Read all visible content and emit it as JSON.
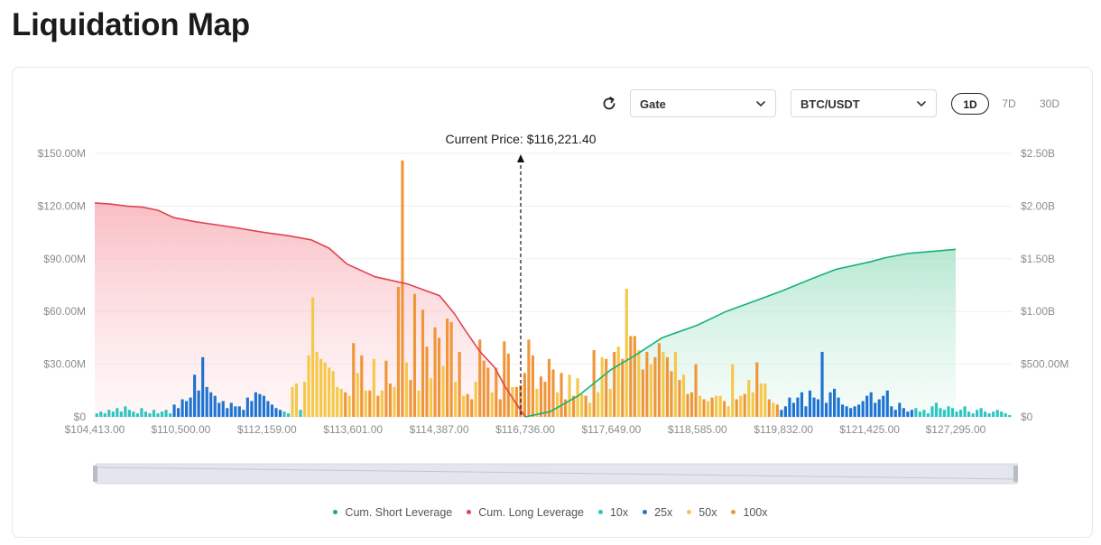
{
  "page": {
    "title": "Liquidation Map"
  },
  "controls": {
    "exchange": "Gate",
    "pair": "BTC/USDT",
    "timeframes": [
      "1D",
      "7D",
      "30D"
    ],
    "active_timeframe": "1D"
  },
  "colors": {
    "short": "#16b07a",
    "long": "#e04450",
    "x10": "#2ec4c0",
    "x25": "#1e73d2",
    "x50": "#f5c84a",
    "x100": "#f0963a"
  },
  "chart_data": {
    "type": "bar",
    "current_price_label": "Current Price: $116,221.40",
    "current_price": 116221.4,
    "x_tick_labels": [
      "$104,413.00",
      "$110,500.00",
      "$112,159.00",
      "$113,601.00",
      "$114,387.00",
      "$116,736.00",
      "$117,649.00",
      "$118,585.00",
      "$119,832.00",
      "$121,425.00",
      "$127,295.00"
    ],
    "y_left_ticks": [
      "$0",
      "$30.00M",
      "$60.00M",
      "$90.00M",
      "$120.00M",
      "$150.00M"
    ],
    "y_right_ticks": [
      "$0",
      "$500.00M",
      "$1.00B",
      "$1.50B",
      "$2.00B",
      "$2.50B"
    ],
    "y_left_range_millions": [
      0,
      150
    ],
    "y_right_range_billions": [
      0,
      2.5
    ],
    "legend": [
      "Cum. Short Leverage",
      "Cum. Long Leverage",
      "10x",
      "25x",
      "50x",
      "100x"
    ],
    "bars_millions": [
      {
        "lev": "10x",
        "v": 2
      },
      {
        "lev": "10x",
        "v": 3
      },
      {
        "lev": "10x",
        "v": 2
      },
      {
        "lev": "10x",
        "v": 4
      },
      {
        "lev": "10x",
        "v": 3
      },
      {
        "lev": "10x",
        "v": 5
      },
      {
        "lev": "10x",
        "v": 3
      },
      {
        "lev": "10x",
        "v": 6
      },
      {
        "lev": "10x",
        "v": 4
      },
      {
        "lev": "10x",
        "v": 3
      },
      {
        "lev": "10x",
        "v": 2
      },
      {
        "lev": "10x",
        "v": 5
      },
      {
        "lev": "10x",
        "v": 3
      },
      {
        "lev": "10x",
        "v": 2
      },
      {
        "lev": "10x",
        "v": 4
      },
      {
        "lev": "10x",
        "v": 2
      },
      {
        "lev": "10x",
        "v": 3
      },
      {
        "lev": "10x",
        "v": 4
      },
      {
        "lev": "10x",
        "v": 2
      },
      {
        "lev": "25x",
        "v": 7
      },
      {
        "lev": "25x",
        "v": 5
      },
      {
        "lev": "25x",
        "v": 10
      },
      {
        "lev": "25x",
        "v": 9
      },
      {
        "lev": "25x",
        "v": 11
      },
      {
        "lev": "25x",
        "v": 24
      },
      {
        "lev": "25x",
        "v": 15
      },
      {
        "lev": "25x",
        "v": 34
      },
      {
        "lev": "25x",
        "v": 17
      },
      {
        "lev": "25x",
        "v": 14
      },
      {
        "lev": "25x",
        "v": 12
      },
      {
        "lev": "25x",
        "v": 8
      },
      {
        "lev": "25x",
        "v": 9
      },
      {
        "lev": "25x",
        "v": 5
      },
      {
        "lev": "25x",
        "v": 8
      },
      {
        "lev": "25x",
        "v": 6
      },
      {
        "lev": "25x",
        "v": 6
      },
      {
        "lev": "25x",
        "v": 4
      },
      {
        "lev": "25x",
        "v": 11
      },
      {
        "lev": "25x",
        "v": 9
      },
      {
        "lev": "25x",
        "v": 14
      },
      {
        "lev": "25x",
        "v": 13
      },
      {
        "lev": "25x",
        "v": 12
      },
      {
        "lev": "25x",
        "v": 9
      },
      {
        "lev": "25x",
        "v": 7
      },
      {
        "lev": "25x",
        "v": 5
      },
      {
        "lev": "25x",
        "v": 4
      },
      {
        "lev": "10x",
        "v": 3
      },
      {
        "lev": "10x",
        "v": 2
      },
      {
        "lev": "50x",
        "v": 17
      },
      {
        "lev": "50x",
        "v": 19
      },
      {
        "lev": "10x",
        "v": 4
      },
      {
        "lev": "50x",
        "v": 20
      },
      {
        "lev": "50x",
        "v": 35
      },
      {
        "lev": "50x",
        "v": 68
      },
      {
        "lev": "50x",
        "v": 37
      },
      {
        "lev": "50x",
        "v": 33
      },
      {
        "lev": "50x",
        "v": 31
      },
      {
        "lev": "50x",
        "v": 28
      },
      {
        "lev": "50x",
        "v": 26
      },
      {
        "lev": "50x",
        "v": 17
      },
      {
        "lev": "50x",
        "v": 16
      },
      {
        "lev": "100x",
        "v": 14
      },
      {
        "lev": "50x",
        "v": 12
      },
      {
        "lev": "100x",
        "v": 42
      },
      {
        "lev": "50x",
        "v": 25
      },
      {
        "lev": "100x",
        "v": 35
      },
      {
        "lev": "50x",
        "v": 15
      },
      {
        "lev": "100x",
        "v": 15
      },
      {
        "lev": "50x",
        "v": 33
      },
      {
        "lev": "100x",
        "v": 12
      },
      {
        "lev": "50x",
        "v": 15
      },
      {
        "lev": "100x",
        "v": 32
      },
      {
        "lev": "100x",
        "v": 19
      },
      {
        "lev": "50x",
        "v": 17
      },
      {
        "lev": "100x",
        "v": 74
      },
      {
        "lev": "100x",
        "v": 146
      },
      {
        "lev": "50x",
        "v": 31
      },
      {
        "lev": "100x",
        "v": 21
      },
      {
        "lev": "100x",
        "v": 70
      },
      {
        "lev": "50x",
        "v": 15
      },
      {
        "lev": "100x",
        "v": 61
      },
      {
        "lev": "100x",
        "v": 40
      },
      {
        "lev": "50x",
        "v": 22
      },
      {
        "lev": "100x",
        "v": 51
      },
      {
        "lev": "100x",
        "v": 45
      },
      {
        "lev": "50x",
        "v": 29
      },
      {
        "lev": "100x",
        "v": 56
      },
      {
        "lev": "100x",
        "v": 54
      },
      {
        "lev": "50x",
        "v": 20
      },
      {
        "lev": "100x",
        "v": 37
      },
      {
        "lev": "50x",
        "v": 12
      },
      {
        "lev": "100x",
        "v": 13
      },
      {
        "lev": "100x",
        "v": 10
      },
      {
        "lev": "50x",
        "v": 20
      },
      {
        "lev": "100x",
        "v": 44
      },
      {
        "lev": "100x",
        "v": 32
      },
      {
        "lev": "100x",
        "v": 28
      },
      {
        "lev": "50x",
        "v": 14
      },
      {
        "lev": "100x",
        "v": 28
      },
      {
        "lev": "100x",
        "v": 10
      },
      {
        "lev": "100x",
        "v": 43
      },
      {
        "lev": "100x",
        "v": 36
      },
      {
        "lev": "50x",
        "v": 17
      },
      {
        "lev": "100x",
        "v": 17
      },
      {
        "lev": "100x",
        "v": 18
      },
      {
        "lev": "100x",
        "v": 25
      },
      {
        "lev": "100x",
        "v": 44
      },
      {
        "lev": "100x",
        "v": 35
      },
      {
        "lev": "50x",
        "v": 16
      },
      {
        "lev": "100x",
        "v": 23
      },
      {
        "lev": "100x",
        "v": 20
      },
      {
        "lev": "100x",
        "v": 33
      },
      {
        "lev": "100x",
        "v": 27
      },
      {
        "lev": "50x",
        "v": 14
      },
      {
        "lev": "100x",
        "v": 25
      },
      {
        "lev": "100x",
        "v": 10
      },
      {
        "lev": "50x",
        "v": 24
      },
      {
        "lev": "100x",
        "v": 12
      },
      {
        "lev": "50x",
        "v": 22
      },
      {
        "lev": "50x",
        "v": 13
      },
      {
        "lev": "100x",
        "v": 12
      },
      {
        "lev": "50x",
        "v": 8
      },
      {
        "lev": "100x",
        "v": 38
      },
      {
        "lev": "50x",
        "v": 14
      },
      {
        "lev": "50x",
        "v": 34
      },
      {
        "lev": "100x",
        "v": 33
      },
      {
        "lev": "50x",
        "v": 16
      },
      {
        "lev": "100x",
        "v": 37
      },
      {
        "lev": "50x",
        "v": 40
      },
      {
        "lev": "100x",
        "v": 33
      },
      {
        "lev": "50x",
        "v": 73
      },
      {
        "lev": "100x",
        "v": 46
      },
      {
        "lev": "100x",
        "v": 46
      },
      {
        "lev": "50x",
        "v": 38
      },
      {
        "lev": "100x",
        "v": 27
      },
      {
        "lev": "100x",
        "v": 37
      },
      {
        "lev": "50x",
        "v": 30
      },
      {
        "lev": "100x",
        "v": 34
      },
      {
        "lev": "100x",
        "v": 42
      },
      {
        "lev": "50x",
        "v": 37
      },
      {
        "lev": "100x",
        "v": 34
      },
      {
        "lev": "100x",
        "v": 26
      },
      {
        "lev": "50x",
        "v": 37
      },
      {
        "lev": "100x",
        "v": 21
      },
      {
        "lev": "50x",
        "v": 24
      },
      {
        "lev": "100x",
        "v": 13
      },
      {
        "lev": "100x",
        "v": 14
      },
      {
        "lev": "100x",
        "v": 30
      },
      {
        "lev": "50x",
        "v": 12
      },
      {
        "lev": "100x",
        "v": 10
      },
      {
        "lev": "50x",
        "v": 9
      },
      {
        "lev": "100x",
        "v": 11
      },
      {
        "lev": "50x",
        "v": 12
      },
      {
        "lev": "50x",
        "v": 12
      },
      {
        "lev": "100x",
        "v": 9
      },
      {
        "lev": "50x",
        "v": 6
      },
      {
        "lev": "50x",
        "v": 30
      },
      {
        "lev": "100x",
        "v": 10
      },
      {
        "lev": "50x",
        "v": 12
      },
      {
        "lev": "100x",
        "v": 13
      },
      {
        "lev": "50x",
        "v": 21
      },
      {
        "lev": "50x",
        "v": 14
      },
      {
        "lev": "100x",
        "v": 31
      },
      {
        "lev": "50x",
        "v": 19
      },
      {
        "lev": "50x",
        "v": 19
      },
      {
        "lev": "100x",
        "v": 10
      },
      {
        "lev": "50x",
        "v": 8
      },
      {
        "lev": "100x",
        "v": 7
      },
      {
        "lev": "25x",
        "v": 4
      },
      {
        "lev": "25x",
        "v": 6
      },
      {
        "lev": "25x",
        "v": 11
      },
      {
        "lev": "25x",
        "v": 8
      },
      {
        "lev": "25x",
        "v": 11
      },
      {
        "lev": "25x",
        "v": 14
      },
      {
        "lev": "25x",
        "v": 6
      },
      {
        "lev": "25x",
        "v": 15
      },
      {
        "lev": "25x",
        "v": 11
      },
      {
        "lev": "25x",
        "v": 10
      },
      {
        "lev": "25x",
        "v": 37
      },
      {
        "lev": "25x",
        "v": 8
      },
      {
        "lev": "25x",
        "v": 14
      },
      {
        "lev": "25x",
        "v": 16
      },
      {
        "lev": "25x",
        "v": 11
      },
      {
        "lev": "25x",
        "v": 7
      },
      {
        "lev": "25x",
        "v": 6
      },
      {
        "lev": "25x",
        "v": 5
      },
      {
        "lev": "25x",
        "v": 6
      },
      {
        "lev": "25x",
        "v": 7
      },
      {
        "lev": "25x",
        "v": 9
      },
      {
        "lev": "25x",
        "v": 12
      },
      {
        "lev": "25x",
        "v": 14
      },
      {
        "lev": "25x",
        "v": 8
      },
      {
        "lev": "25x",
        "v": 10
      },
      {
        "lev": "25x",
        "v": 12
      },
      {
        "lev": "25x",
        "v": 15
      },
      {
        "lev": "25x",
        "v": 6
      },
      {
        "lev": "25x",
        "v": 4
      },
      {
        "lev": "25x",
        "v": 8
      },
      {
        "lev": "25x",
        "v": 5
      },
      {
        "lev": "25x",
        "v": 3
      },
      {
        "lev": "25x",
        "v": 4
      },
      {
        "lev": "10x",
        "v": 5
      },
      {
        "lev": "10x",
        "v": 3
      },
      {
        "lev": "10x",
        "v": 4
      },
      {
        "lev": "10x",
        "v": 2
      },
      {
        "lev": "10x",
        "v": 6
      },
      {
        "lev": "10x",
        "v": 8
      },
      {
        "lev": "10x",
        "v": 5
      },
      {
        "lev": "10x",
        "v": 4
      },
      {
        "lev": "10x",
        "v": 6
      },
      {
        "lev": "10x",
        "v": 5
      },
      {
        "lev": "10x",
        "v": 3
      },
      {
        "lev": "10x",
        "v": 4
      },
      {
        "lev": "10x",
        "v": 6
      },
      {
        "lev": "10x",
        "v": 3
      },
      {
        "lev": "10x",
        "v": 2
      },
      {
        "lev": "10x",
        "v": 4
      },
      {
        "lev": "10x",
        "v": 5
      },
      {
        "lev": "10x",
        "v": 3
      },
      {
        "lev": "10x",
        "v": 2
      },
      {
        "lev": "10x",
        "v": 3
      },
      {
        "lev": "10x",
        "v": 4
      },
      {
        "lev": "10x",
        "v": 3
      },
      {
        "lev": "10x",
        "v": 2
      },
      {
        "lev": "10x",
        "v": 1
      }
    ],
    "cum_long_billions": [
      [
        104413,
        2.03
      ],
      [
        105500,
        2.02
      ],
      [
        106700,
        2.0
      ],
      [
        107800,
        1.99
      ],
      [
        108900,
        1.96
      ],
      [
        110000,
        1.89
      ],
      [
        110800,
        1.85
      ],
      [
        111500,
        1.8
      ],
      [
        112100,
        1.75
      ],
      [
        112500,
        1.72
      ],
      [
        112900,
        1.68
      ],
      [
        113200,
        1.6
      ],
      [
        113500,
        1.45
      ],
      [
        113800,
        1.33
      ],
      [
        114100,
        1.26
      ],
      [
        114400,
        1.15
      ],
      [
        114800,
        0.98
      ],
      [
        115100,
        0.82
      ],
      [
        115500,
        0.62
      ],
      [
        115900,
        0.47
      ],
      [
        116200,
        0.28
      ],
      [
        116500,
        0.12
      ],
      [
        116736,
        0.0
      ]
    ],
    "cum_short_billions": [
      [
        116736,
        0.0
      ],
      [
        117000,
        0.05
      ],
      [
        117300,
        0.2
      ],
      [
        117649,
        0.45
      ],
      [
        117900,
        0.58
      ],
      [
        118200,
        0.75
      ],
      [
        118585,
        0.87
      ],
      [
        119000,
        1.0
      ],
      [
        119500,
        1.12
      ],
      [
        119832,
        1.2
      ],
      [
        120300,
        1.3
      ],
      [
        120800,
        1.4
      ],
      [
        121425,
        1.47
      ],
      [
        122500,
        1.51
      ],
      [
        124000,
        1.55
      ],
      [
        127295,
        1.59
      ]
    ]
  }
}
